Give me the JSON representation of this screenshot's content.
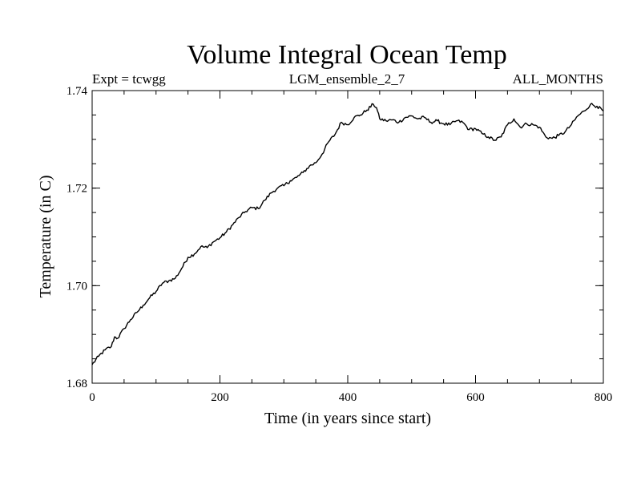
{
  "chart_data": {
    "type": "line",
    "title": "Volume Integral Ocean Temp",
    "subtitle_left": "Expt = tcwgg",
    "subtitle_center": "LGM_ensemble_2_7",
    "subtitle_right": "ALL_MONTHS",
    "xlabel": "Time (in years since start)",
    "ylabel": "Temperature (in C)",
    "xlim": [
      0,
      800
    ],
    "ylim": [
      1.68,
      1.74
    ],
    "x_ticks": [
      0,
      200,
      400,
      600,
      800
    ],
    "x_tick_labels": [
      "0",
      "200",
      "400",
      "600",
      "800"
    ],
    "x_minor_step": 50,
    "y_ticks": [
      1.68,
      1.7,
      1.72,
      1.74
    ],
    "y_tick_labels": [
      "1.68",
      "1.70",
      "1.72",
      "1.74"
    ],
    "y_minor_step": 0.005,
    "grid": false,
    "series": [
      {
        "name": "Volume Integral Ocean Temp",
        "x": [
          0,
          10,
          20,
          30,
          35,
          40,
          50,
          60,
          70,
          80,
          90,
          100,
          110,
          120,
          130,
          140,
          150,
          160,
          170,
          180,
          190,
          200,
          210,
          220,
          230,
          240,
          250,
          260,
          270,
          280,
          290,
          300,
          310,
          320,
          330,
          340,
          350,
          360,
          370,
          380,
          390,
          400,
          410,
          420,
          430,
          440,
          445,
          450,
          460,
          470,
          480,
          490,
          500,
          510,
          520,
          530,
          540,
          550,
          560,
          570,
          580,
          590,
          600,
          610,
          620,
          630,
          640,
          650,
          660,
          670,
          680,
          690,
          700,
          710,
          720,
          730,
          740,
          750,
          760,
          770,
          780,
          790,
          800
        ],
        "values": [
          1.6838,
          1.6855,
          1.6868,
          1.6875,
          1.6895,
          1.6892,
          1.6912,
          1.693,
          1.6945,
          1.696,
          1.6975,
          1.6988,
          1.7005,
          1.701,
          1.7015,
          1.7035,
          1.7058,
          1.7065,
          1.708,
          1.7078,
          1.709,
          1.7098,
          1.711,
          1.7125,
          1.714,
          1.7152,
          1.716,
          1.7158,
          1.7175,
          1.719,
          1.72,
          1.7205,
          1.7215,
          1.7222,
          1.7232,
          1.7245,
          1.7252,
          1.727,
          1.7295,
          1.731,
          1.7335,
          1.733,
          1.7345,
          1.735,
          1.736,
          1.7372,
          1.7365,
          1.7342,
          1.7338,
          1.734,
          1.7335,
          1.7345,
          1.7348,
          1.7342,
          1.7345,
          1.7335,
          1.7338,
          1.7332,
          1.733,
          1.7338,
          1.7335,
          1.732,
          1.7322,
          1.7312,
          1.7305,
          1.7298,
          1.7305,
          1.733,
          1.7342,
          1.7325,
          1.7332,
          1.733,
          1.7325,
          1.7305,
          1.7302,
          1.7308,
          1.7315,
          1.733,
          1.7348,
          1.7358,
          1.7372,
          1.7368,
          1.7358
        ]
      }
    ]
  }
}
